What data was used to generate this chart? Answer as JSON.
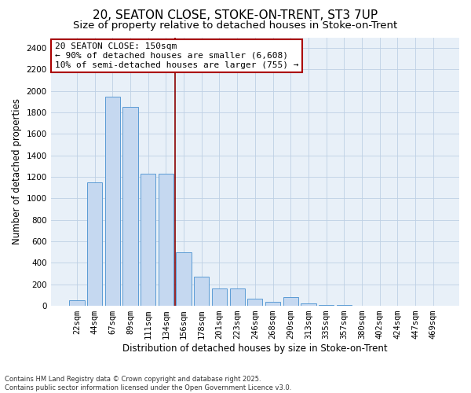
{
  "title_line1": "20, SEATON CLOSE, STOKE-ON-TRENT, ST3 7UP",
  "title_line2": "Size of property relative to detached houses in Stoke-on-Trent",
  "xlabel": "Distribution of detached houses by size in Stoke-on-Trent",
  "ylabel": "Number of detached properties",
  "categories": [
    "22sqm",
    "44sqm",
    "67sqm",
    "89sqm",
    "111sqm",
    "134sqm",
    "156sqm",
    "178sqm",
    "201sqm",
    "223sqm",
    "246sqm",
    "268sqm",
    "290sqm",
    "313sqm",
    "335sqm",
    "357sqm",
    "380sqm",
    "402sqm",
    "424sqm",
    "447sqm",
    "469sqm"
  ],
  "values": [
    55,
    1150,
    1950,
    1850,
    1230,
    1230,
    500,
    270,
    160,
    160,
    70,
    40,
    80,
    20,
    8,
    8,
    4,
    3,
    2,
    2,
    2
  ],
  "bar_color": "#c5d8f0",
  "bar_edge_color": "#5b9bd5",
  "vline_color": "#8b0000",
  "annotation_text": "20 SEATON CLOSE: 150sqm\n← 90% of detached houses are smaller (6,608)\n10% of semi-detached houses are larger (755) →",
  "annotation_box_color": "#ffffff",
  "annotation_box_edge_color": "#aa0000",
  "ylim_max": 2500,
  "ytick_step": 200,
  "grid_color": "#bdd0e4",
  "background_color": "#e8f0f8",
  "footnote": "Contains HM Land Registry data © Crown copyright and database right 2025.\nContains public sector information licensed under the Open Government Licence v3.0.",
  "title_fontsize": 11,
  "subtitle_fontsize": 9.5,
  "axis_label_fontsize": 8.5,
  "tick_fontsize": 7.5,
  "annotation_fontsize": 8,
  "footnote_fontsize": 6
}
